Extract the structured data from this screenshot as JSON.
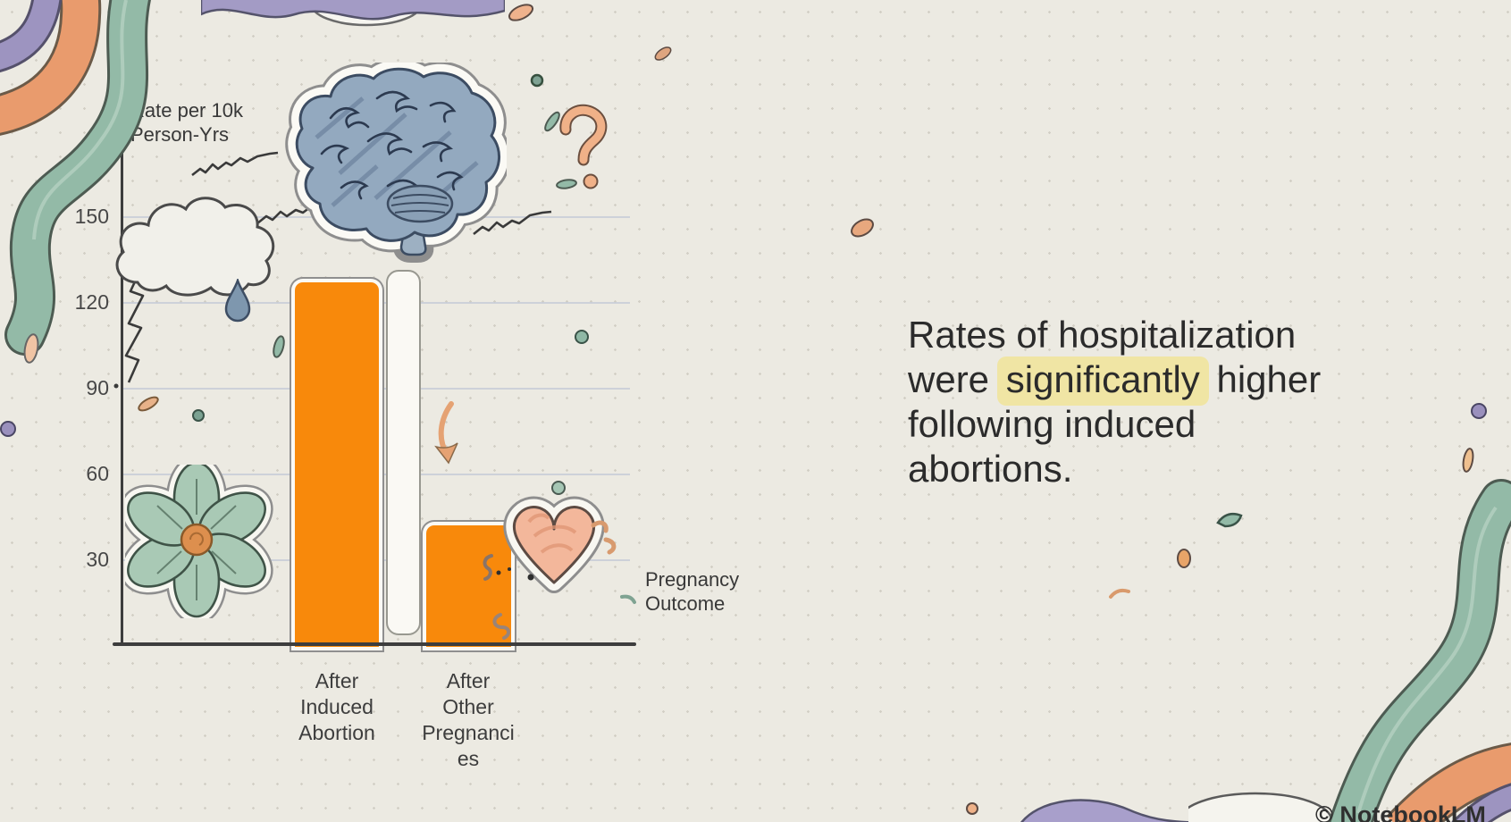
{
  "chart_data": {
    "type": "bar",
    "categories": [
      "After Induced Abortion",
      "After Other Pregnancies"
    ],
    "values": [
      127,
      42
    ],
    "title": "",
    "xlabel": "Pregnancy Outcome",
    "ylabel": "Rate per 10k Person-Yrs",
    "yticks": [
      30,
      60,
      90,
      120,
      150
    ],
    "ylim": [
      0,
      165
    ],
    "grid": true,
    "legend": false,
    "bar_color": "#F8890B"
  },
  "caption": {
    "lines": [
      {
        "segments": [
          {
            "text": "Rates of hospitalization"
          }
        ]
      },
      {
        "segments": [
          {
            "text": "were "
          },
          {
            "text": "significantly",
            "highlight": true
          },
          {
            "text": " higher"
          }
        ]
      },
      {
        "segments": [
          {
            "text": "following induced"
          }
        ]
      },
      {
        "segments": [
          {
            "text": "abortions."
          }
        ]
      }
    ],
    "highlight_color": "#F0E5A4"
  },
  "watermark": "© NotebookLM",
  "palette": {
    "paper": "#ECEAE2",
    "bar_orange": "#F8890B",
    "ribbon_teal": "#93BAA7",
    "ribbon_orange": "#E99B6D",
    "ribbon_purple": "#9D94C0",
    "brain_blue": "#93A9BF",
    "highlight_yellow": "#F0E5A4"
  },
  "decorations": [
    "brain-doodle-icon",
    "storm-cloud-doodle-icon",
    "raindrop-icon",
    "lightning-scribble-icon",
    "zigzag-scribble-icon",
    "question-mark-doodle-icon",
    "flower-sticker-icon",
    "heart-sticker-icon",
    "down-arrow-doodle-icon",
    "worm-squiggle-icon",
    "ribbon-top-left-icon",
    "ribbon-top-edge-icon",
    "ribbon-bottom-right-icon",
    "bottom-wave-icon",
    "confetti-speck-icon"
  ]
}
